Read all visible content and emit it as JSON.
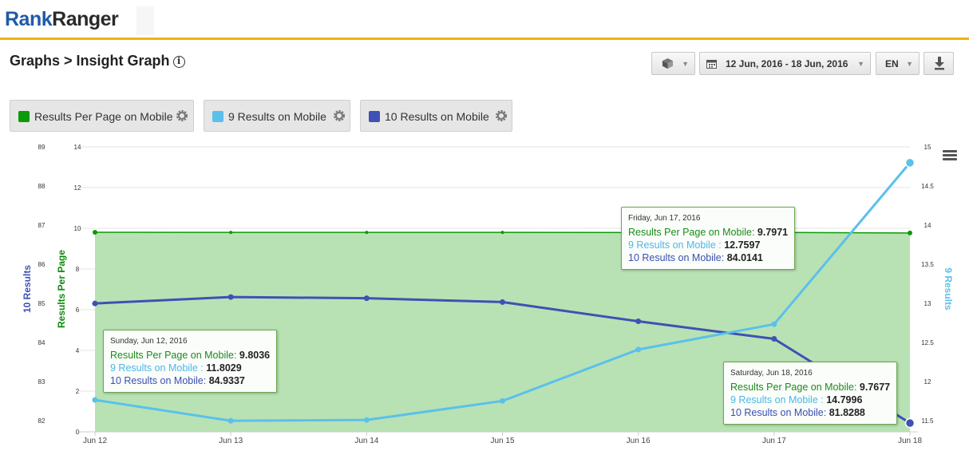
{
  "header": {
    "logo_part1": "Rank",
    "logo_part2": "Ranger",
    "brand_color": "#1e5aa8",
    "accent_color": "#f0b400"
  },
  "page": {
    "title": "Graphs > Insight Graph",
    "info_icon": "info-icon"
  },
  "toolbar": {
    "cube_icon": "cube-icon",
    "date_range": "12 Jun, 2016 - 18 Jun, 2016",
    "language": "EN",
    "download_icon": "download-icon"
  },
  "legend": [
    {
      "label": "Results Per Page on Mobile",
      "color": "#0a9a0a"
    },
    {
      "label": "9 Results on Mobile",
      "color": "#5bc0eb"
    },
    {
      "label": "10 Results on Mobile",
      "color": "#3f51b5"
    }
  ],
  "chart_data": {
    "type": "line",
    "categories": [
      "Jun 12",
      "Jun 13",
      "Jun 14",
      "Jun 15",
      "Jun 16",
      "Jun 17",
      "Jun 18"
    ],
    "series": [
      {
        "name": "Results Per Page on Mobile",
        "axis": "Results Per Page",
        "style": "area",
        "color": "#0a9a0a",
        "values": [
          9.8036,
          9.8,
          9.8,
          9.8,
          9.79,
          9.7971,
          9.7677
        ]
      },
      {
        "name": "9 Results on Mobile",
        "axis": "9 Results",
        "style": "line",
        "color": "#5bc0eb",
        "values": [
          11.8029,
          11.54,
          11.55,
          11.79,
          12.44,
          12.7597,
          14.7996
        ]
      },
      {
        "name": "10 Results on Mobile",
        "axis": "10 Results",
        "style": "line",
        "color": "#3f51b5",
        "values": [
          84.9337,
          85.1,
          85.07,
          84.97,
          84.47,
          84.0141,
          81.8288
        ]
      }
    ],
    "axes": {
      "results_per_page": {
        "label": "Results Per Page",
        "range": [
          0,
          14
        ],
        "ticks": [
          "0",
          "2",
          "4",
          "6",
          "8",
          "10",
          "12",
          "14"
        ],
        "color": "#0a8a0a"
      },
      "ten_results": {
        "label": "10 Results",
        "range": [
          81.6,
          89
        ],
        "ticks": [
          "82",
          "83",
          "84",
          "85",
          "86",
          "87",
          "88",
          "89"
        ],
        "color": "#3f51b5"
      },
      "nine_results": {
        "label": "9 Results",
        "range": [
          11.4,
          15
        ],
        "ticks": [
          "11.5",
          "12",
          "12.5",
          "13",
          "13.5",
          "14",
          "14.5",
          "15"
        ],
        "color": "#5bc0eb"
      }
    },
    "grid": true
  },
  "tooltips": [
    {
      "date": "Sunday, Jun 12, 2016",
      "r_label": "Results Per Page on Mobile:",
      "r_val": "9.8036",
      "n_label": "9 Results on Mobile :",
      "n_val": "11.8029",
      "t_label": "10 Results on Mobile:",
      "t_val": "84.9337"
    },
    {
      "date": "Friday, Jun 17, 2016",
      "r_label": "Results Per Page on Mobile:",
      "r_val": "9.7971",
      "n_label": "9 Results on Mobile :",
      "n_val": "12.7597",
      "t_label": "10 Results on Mobile:",
      "t_val": "84.0141"
    },
    {
      "date": "Saturday, Jun 18, 2016",
      "r_label": "Results Per Page on Mobile:",
      "r_val": "9.7677",
      "n_label": "9 Results on Mobile :",
      "n_val": "14.7996",
      "t_label": "10 Results on Mobile:",
      "t_val": "81.8288"
    }
  ],
  "chart_menu_icon": "hamburger-menu-icon"
}
